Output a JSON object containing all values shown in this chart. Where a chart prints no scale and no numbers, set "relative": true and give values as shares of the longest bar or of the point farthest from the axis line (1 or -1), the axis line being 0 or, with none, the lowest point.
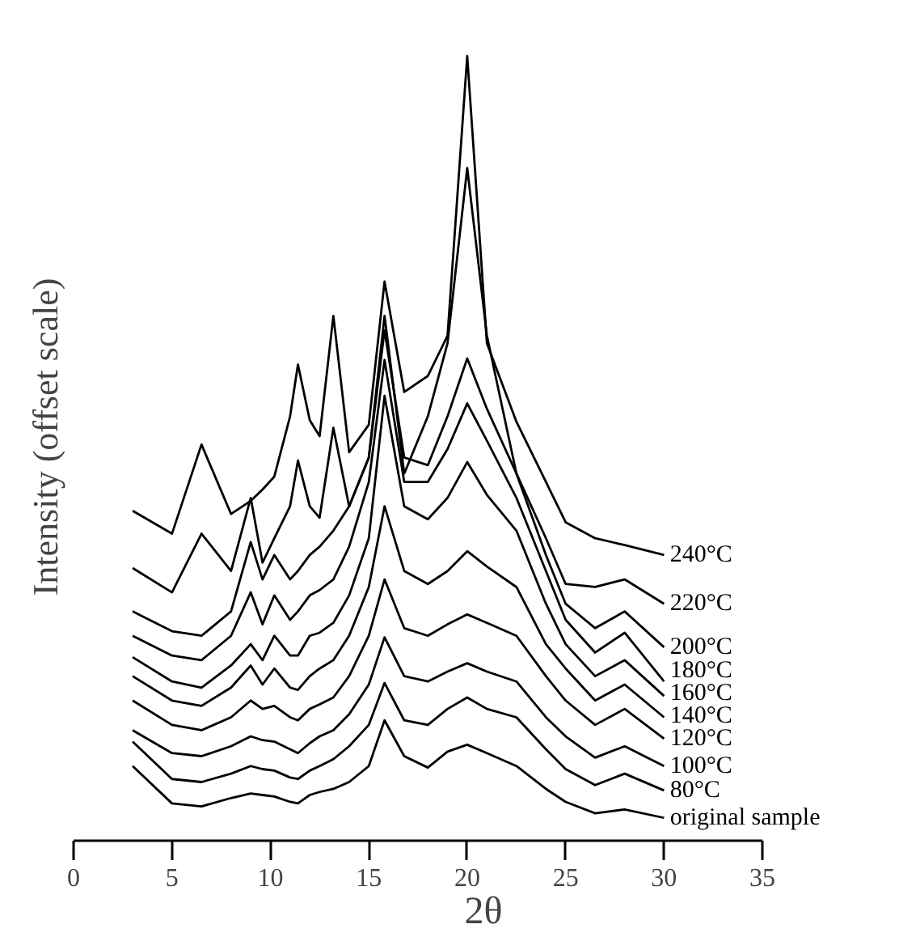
{
  "chart_data": {
    "type": "line",
    "xlabel": "2θ",
    "ylabel": "Intensity (offset scale)",
    "relative": true,
    "xlim": [
      0,
      35
    ],
    "xticks": [
      0,
      5,
      10,
      15,
      20,
      25,
      30,
      35
    ],
    "x": [
      3,
      5,
      6.5,
      8,
      9,
      9.6,
      10.2,
      11,
      11.4,
      12,
      12.5,
      13.2,
      14,
      15,
      15.8,
      16.8,
      18,
      19,
      20,
      21,
      22.5,
      24,
      25,
      26.5,
      28,
      30
    ],
    "series": [
      {
        "name": "240°C",
        "color": "#000000",
        "values": [
          0.403,
          0.373,
          0.49,
          0.399,
          0.416,
          0.431,
          0.448,
          0.527,
          0.595,
          0.522,
          0.501,
          0.659,
          0.48,
          0.516,
          0.704,
          0.559,
          0.58,
          0.633,
          1,
          0.623,
          0.52,
          0.441,
          0.388,
          0.367,
          0.358,
          0.345
        ]
      },
      {
        "name": "220°C",
        "color": "#000000",
        "values": [
          0.328,
          0.296,
          0.373,
          0.324,
          0.42,
          0.335,
          0.367,
          0.409,
          0.469,
          0.409,
          0.394,
          0.512,
          0.409,
          0.473,
          0.659,
          0.452,
          0.527,
          0.623,
          0.853,
          0.633,
          0.452,
          0.367,
          0.307,
          0.303,
          0.313,
          0.281
        ]
      },
      {
        "name": "200°C",
        "color": "#000000",
        "values": [
          0.271,
          0.245,
          0.239,
          0.271,
          0.362,
          0.313,
          0.345,
          0.313,
          0.324,
          0.345,
          0.356,
          0.377,
          0.409,
          0.473,
          0.64,
          0.473,
          0.463,
          0.527,
          0.603,
          0.537,
          0.452,
          0.345,
          0.281,
          0.249,
          0.271,
          0.224
        ]
      },
      {
        "name": "180°C",
        "color": "#000000",
        "values": [
          0.239,
          0.213,
          0.207,
          0.239,
          0.296,
          0.254,
          0.292,
          0.26,
          0.271,
          0.292,
          0.299,
          0.313,
          0.356,
          0.441,
          0.601,
          0.441,
          0.441,
          0.484,
          0.544,
          0.495,
          0.42,
          0.324,
          0.26,
          0.217,
          0.243,
          0.179
        ]
      },
      {
        "name": "160°C",
        "color": "#000000",
        "values": [
          0.211,
          0.179,
          0.171,
          0.2,
          0.228,
          0.207,
          0.239,
          0.213,
          0.213,
          0.239,
          0.243,
          0.256,
          0.292,
          0.367,
          0.554,
          0.409,
          0.392,
          0.42,
          0.467,
          0.424,
          0.377,
          0.281,
          0.228,
          0.186,
          0.207,
          0.16
        ]
      },
      {
        "name": "140°C",
        "color": "#000000",
        "values": [
          0.186,
          0.154,
          0.147,
          0.171,
          0.2,
          0.175,
          0.196,
          0.171,
          0.168,
          0.186,
          0.196,
          0.207,
          0.239,
          0.303,
          0.409,
          0.324,
          0.307,
          0.324,
          0.35,
          0.33,
          0.303,
          0.228,
          0.196,
          0.154,
          0.175,
          0.132
        ]
      },
      {
        "name": "120°C",
        "color": "#000000",
        "values": [
          0.154,
          0.122,
          0.115,
          0.132,
          0.154,
          0.143,
          0.147,
          0.132,
          0.128,
          0.143,
          0.149,
          0.158,
          0.186,
          0.239,
          0.313,
          0.249,
          0.239,
          0.254,
          0.267,
          0.256,
          0.239,
          0.186,
          0.154,
          0.122,
          0.143,
          0.104
        ]
      },
      {
        "name": "100°C",
        "color": "#000000",
        "values": [
          0.115,
          0.085,
          0.081,
          0.094,
          0.107,
          0.102,
          0.1,
          0.09,
          0.085,
          0.098,
          0.107,
          0.115,
          0.136,
          0.175,
          0.237,
          0.186,
          0.179,
          0.192,
          0.203,
          0.192,
          0.179,
          0.132,
          0.107,
          0.079,
          0.094,
          0.068
        ]
      },
      {
        "name": "80°C",
        "color": "#000000",
        "values": [
          0.1,
          0.051,
          0.047,
          0.058,
          0.068,
          0.064,
          0.062,
          0.053,
          0.051,
          0.062,
          0.068,
          0.077,
          0.094,
          0.122,
          0.177,
          0.128,
          0.122,
          0.143,
          0.158,
          0.143,
          0.132,
          0.09,
          0.064,
          0.043,
          0.058,
          0.036
        ]
      },
      {
        "name": "original sample",
        "color": "#000000",
        "values": [
          0.068,
          0.019,
          0.015,
          0.026,
          0.032,
          0.03,
          0.028,
          0.021,
          0.019,
          0.03,
          0.034,
          0.038,
          0.047,
          0.068,
          0.128,
          0.081,
          0.066,
          0.087,
          0.096,
          0.085,
          0.068,
          0.038,
          0.021,
          0.006,
          0.011,
          0
        ]
      }
    ]
  }
}
